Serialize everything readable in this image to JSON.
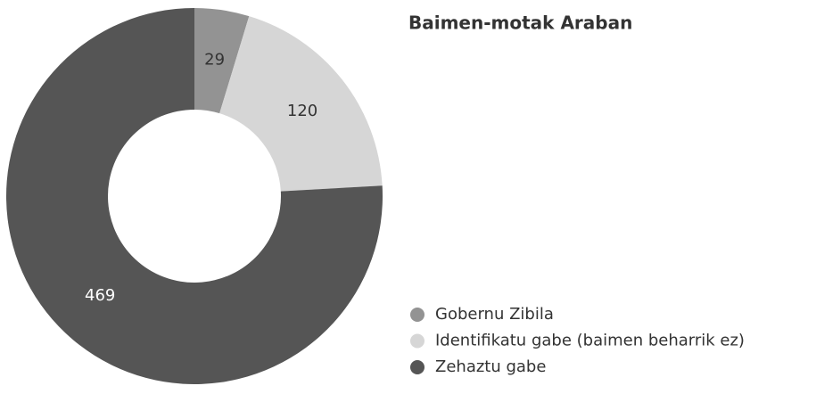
{
  "chart_data": {
    "type": "donut",
    "title": "Baimen-motak Araban",
    "categories": [
      "Gobernu Zibila",
      "Identifikatu gabe (baimen beharrik ez)",
      "Zehaztu gabe"
    ],
    "values": [
      29,
      120,
      469
    ],
    "colors": [
      "#939393",
      "#d6d6d6",
      "#555555"
    ],
    "legend": "bottom-right"
  }
}
